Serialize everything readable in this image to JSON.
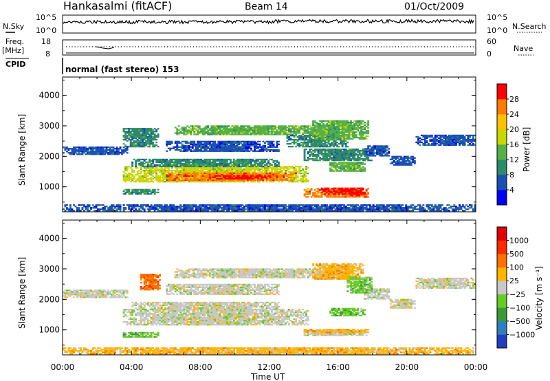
{
  "header": {
    "title": "Hankasalmi (fitACF)",
    "beam": "Beam 14",
    "date": "01/Oct/2009"
  },
  "nsky_panel": {
    "left_label": "N.Sky",
    "right_label": "N.Search",
    "left_ticks": [
      "10^5",
      "10^0"
    ],
    "right_ticks": [
      "10^5",
      "10^0"
    ]
  },
  "freq_panel": {
    "left_label_1": "Freq.",
    "left_label_2": "[MHz]",
    "right_label": "Nave",
    "left_ticks": [
      "18",
      "8"
    ],
    "right_ticks": [
      "60",
      "0"
    ]
  },
  "cpid_panel": {
    "label": "CPID",
    "text": "normal (fast stereo) 153"
  },
  "chart_data": [
    {
      "type": "heatmap",
      "name": "power",
      "ylabel": "Slant Range [km]",
      "xlabel": "",
      "x_ticks": [
        "00:00",
        "04:00",
        "08:00",
        "12:00",
        "16:00",
        "20:00",
        "00:00"
      ],
      "y_ticks": [
        "1000",
        "2000",
        "3000",
        "4000"
      ],
      "xlim": [
        0,
        24
      ],
      "ylim": [
        180,
        4600
      ],
      "colorbar": {
        "label": "Power [dB]",
        "ticks": [
          "4",
          "8",
          "12",
          "16",
          "20",
          "24",
          "28"
        ],
        "colors": [
          "#0000ff",
          "#1a4fb4",
          "#2d8a6a",
          "#55b048",
          "#c8d800",
          "#ffc000",
          "#ff7a00",
          "#ff0000"
        ]
      },
      "regions": [
        {
          "t0": 0.0,
          "t1": 3.8,
          "r0": 2050,
          "r1": 2300,
          "level": 1
        },
        {
          "t0": 3.5,
          "t1": 14.2,
          "r0": 1150,
          "r1": 1650,
          "level": 4
        },
        {
          "t0": 6.0,
          "t1": 13.5,
          "r0": 1200,
          "r1": 1450,
          "level": 6
        },
        {
          "t0": 8.5,
          "t1": 12.0,
          "r0": 1250,
          "r1": 1380,
          "level": 7
        },
        {
          "t0": 4.0,
          "t1": 12.5,
          "r0": 1650,
          "r1": 1900,
          "level": 2
        },
        {
          "t0": 3.5,
          "t1": 5.5,
          "r0": 2300,
          "r1": 2900,
          "level": 2
        },
        {
          "t0": 6.0,
          "t1": 12.5,
          "r0": 2150,
          "r1": 2500,
          "level": 1
        },
        {
          "t0": 6.5,
          "t1": 15.5,
          "r0": 2700,
          "r1": 3000,
          "level": 3
        },
        {
          "t0": 13.0,
          "t1": 16.5,
          "r0": 2300,
          "r1": 2700,
          "level": 2
        },
        {
          "t0": 14.5,
          "t1": 17.8,
          "r0": 2550,
          "r1": 3150,
          "level": 3
        },
        {
          "t0": 14.0,
          "t1": 18.0,
          "r0": 1850,
          "r1": 2250,
          "level": 2
        },
        {
          "t0": 15.5,
          "t1": 17.6,
          "r0": 1500,
          "r1": 1800,
          "level": 3
        },
        {
          "t0": 14.0,
          "t1": 17.8,
          "r0": 650,
          "r1": 950,
          "level": 6
        },
        {
          "t0": 15.0,
          "t1": 17.6,
          "r0": 750,
          "r1": 950,
          "level": 7
        },
        {
          "t0": 3.5,
          "t1": 5.5,
          "r0": 750,
          "r1": 900,
          "level": 2
        },
        {
          "t0": 17.5,
          "t1": 19.0,
          "r0": 2000,
          "r1": 2350,
          "level": 1
        },
        {
          "t0": 19.0,
          "t1": 20.5,
          "r0": 1700,
          "r1": 2000,
          "level": 1
        },
        {
          "t0": 20.5,
          "t1": 24.0,
          "r0": 2350,
          "r1": 2700,
          "level": 1
        },
        {
          "t0": 0.0,
          "t1": 24.0,
          "r0": 200,
          "r1": 420,
          "level": 1
        }
      ]
    },
    {
      "type": "heatmap",
      "name": "velocity",
      "ylabel": "Slant Range [km]",
      "xlabel": "Time UT",
      "x_ticks": [
        "00:00",
        "04:00",
        "08:00",
        "12:00",
        "16:00",
        "20:00",
        "00:00"
      ],
      "y_ticks": [
        "1000",
        "2000",
        "3000",
        "4000"
      ],
      "xlim": [
        0,
        24
      ],
      "ylim": [
        180,
        4600
      ],
      "colorbar": {
        "label": "Velocity [m s⁻¹]",
        "ticks": [
          "1000",
          "500",
          "100",
          "25",
          "−25",
          "−100",
          "−500",
          "−1000"
        ],
        "colors": [
          "#1f3fbf",
          "#2f7fbf",
          "#3a9a3a",
          "#66cc22",
          "#c8c8c8",
          "#ffb400",
          "#ff7000",
          "#ff2a00",
          "#e00000"
        ]
      },
      "regions": [
        {
          "t0": 0.0,
          "t1": 3.8,
          "r0": 2050,
          "r1": 2300,
          "level": 4
        },
        {
          "t0": 3.5,
          "t1": 14.2,
          "r0": 1150,
          "r1": 1650,
          "level": 4
        },
        {
          "t0": 4.0,
          "t1": 12.5,
          "r0": 1650,
          "r1": 1900,
          "level": 4
        },
        {
          "t0": 6.5,
          "t1": 15.5,
          "r0": 2700,
          "r1": 3000,
          "level": 4
        },
        {
          "t0": 6.0,
          "t1": 12.5,
          "r0": 2150,
          "r1": 2500,
          "level": 4
        },
        {
          "t0": 14.0,
          "t1": 17.8,
          "r0": 800,
          "r1": 950,
          "level": 4
        },
        {
          "t0": 19.0,
          "t1": 20.5,
          "r0": 1700,
          "r1": 2000,
          "level": 4
        },
        {
          "t0": 20.5,
          "t1": 24.0,
          "r0": 2350,
          "r1": 2700,
          "level": 4
        },
        {
          "t0": 17.5,
          "t1": 19.0,
          "r0": 2000,
          "r1": 2350,
          "level": 4
        },
        {
          "t0": 4.5,
          "t1": 5.6,
          "r0": 2300,
          "r1": 2800,
          "level": 6
        },
        {
          "t0": 14.5,
          "t1": 17.5,
          "r0": 2650,
          "r1": 3150,
          "level": 5
        },
        {
          "t0": 16.5,
          "t1": 18.0,
          "r0": 2200,
          "r1": 2700,
          "level": 3
        },
        {
          "t0": 15.5,
          "t1": 17.6,
          "r0": 1450,
          "r1": 1700,
          "level": 3
        },
        {
          "t0": 14.0,
          "t1": 17.8,
          "r0": 900,
          "r1": 1000,
          "level": 5
        },
        {
          "t0": 3.5,
          "t1": 5.5,
          "r0": 750,
          "r1": 900,
          "level": 3
        },
        {
          "t0": 0.0,
          "t1": 24.0,
          "r0": 200,
          "r1": 420,
          "level": 5
        }
      ]
    }
  ]
}
